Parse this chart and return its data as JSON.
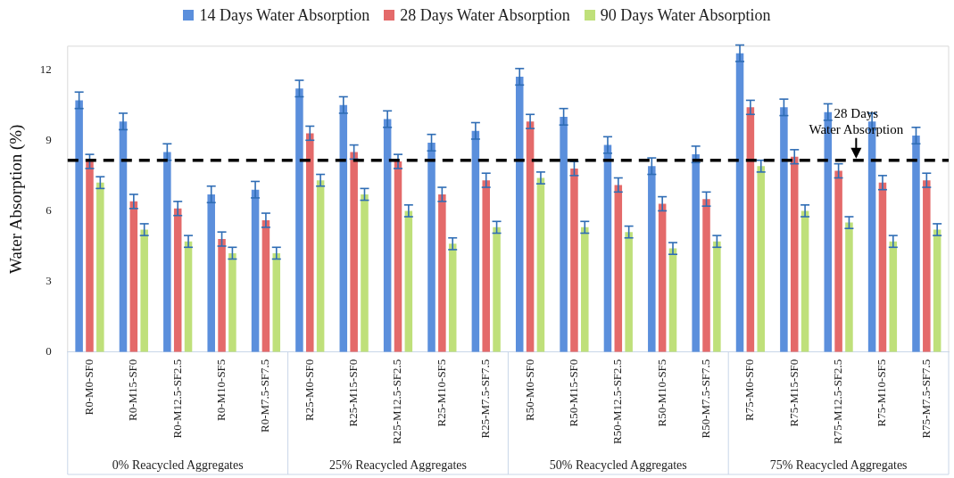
{
  "chart_data": {
    "type": "bar",
    "ylabel": "Water Absorption (%)",
    "categories": [
      "R0-M0-SF0",
      "R0-M15-SF0",
      "R0-M12.5-SF2.5",
      "R0-M10-SF5",
      "R0-M7.5-SF7.5",
      "R25-M0-SF0",
      "R25-M15-SF0",
      "R25-M12.5-SF2.5",
      "R25-M10-SF5",
      "R25-M7.5-SF7.5",
      "R50-M0-SF0",
      "R50-M15-SF0",
      "R50-M12.5-SF2.5",
      "R50-M10-SF5",
      "R50-M7.5-SF7.5",
      "R75-M0-SF0",
      "R75-M15-SF0",
      "R75-M12.5-SF2.5",
      "R75-M10-SF5",
      "R75-M7.5-SF7.5"
    ],
    "series": [
      {
        "name": "14 Days Water Absorption",
        "color": "#5b8fdc",
        "values": [
          10.7,
          9.8,
          8.5,
          6.7,
          6.9,
          11.2,
          10.5,
          9.9,
          8.9,
          9.4,
          11.7,
          10.0,
          8.8,
          7.9,
          8.4,
          12.7,
          10.4,
          10.2,
          9.8,
          9.2
        ],
        "errors": [
          0.35,
          0.35,
          0.35,
          0.35,
          0.35,
          0.35,
          0.35,
          0.35,
          0.35,
          0.35,
          0.35,
          0.35,
          0.35,
          0.35,
          0.35,
          0.35,
          0.35,
          0.35,
          0.35,
          0.35
        ]
      },
      {
        "name": "28 Days Water Absorption",
        "color": "#e46a6a",
        "values": [
          8.1,
          6.4,
          6.1,
          4.8,
          5.6,
          9.3,
          8.5,
          8.1,
          6.7,
          7.3,
          9.8,
          7.8,
          7.1,
          6.3,
          6.5,
          10.4,
          8.3,
          7.7,
          7.2,
          7.3
        ],
        "errors": [
          0.3,
          0.3,
          0.3,
          0.3,
          0.3,
          0.3,
          0.3,
          0.3,
          0.3,
          0.3,
          0.3,
          0.3,
          0.3,
          0.3,
          0.3,
          0.3,
          0.3,
          0.3,
          0.3,
          0.3
        ]
      },
      {
        "name": "90 Days Water Absorption",
        "color": "#bfe07a",
        "values": [
          7.2,
          5.2,
          4.7,
          4.2,
          4.2,
          7.3,
          6.7,
          6.0,
          4.6,
          5.3,
          7.4,
          5.3,
          5.1,
          4.4,
          4.7,
          7.9,
          6.0,
          5.5,
          4.7,
          5.2
        ],
        "errors": [
          0.25,
          0.25,
          0.25,
          0.25,
          0.25,
          0.25,
          0.25,
          0.25,
          0.25,
          0.25,
          0.25,
          0.25,
          0.25,
          0.25,
          0.25,
          0.25,
          0.25,
          0.25,
          0.25,
          0.25
        ]
      }
    ],
    "ylim": [
      0,
      13
    ],
    "yticks": [
      0,
      3,
      6,
      9,
      12
    ],
    "grid": false,
    "legend": "top",
    "ref_lines": [
      {
        "axis": "y",
        "value": 8.15,
        "label": "28 Days Water Absorption",
        "color": "#000000",
        "line_style": "dashed"
      }
    ],
    "annotations": [
      "0% Reacycled Aggregates",
      "25% Reacycled Aggregates",
      "50% Reacycled Aggregates",
      "75% Reacycled Aggregates"
    ]
  }
}
